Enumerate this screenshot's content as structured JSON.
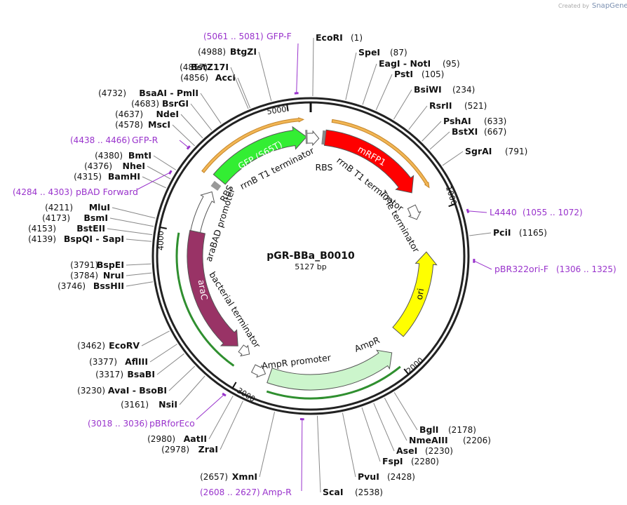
{
  "watermark": {
    "prefix": "Created by",
    "brand": "SnapGene"
  },
  "plasmid": {
    "name": "pGR-BBa_B0010",
    "length": "5127 bp"
  },
  "ruler": [
    "1000",
    "2000",
    "3000",
    "4000",
    "5000"
  ],
  "enzymes": [
    {
      "name": "EcoRI",
      "position": "(1)"
    },
    {
      "name": "SpeI",
      "position": "(87)"
    },
    {
      "name": "EagI - NotI",
      "position": "(95)"
    },
    {
      "name": "PstI",
      "position": "(105)"
    },
    {
      "name": "BsiWI",
      "position": "(234)"
    },
    {
      "name": "RsrII",
      "position": "(521)"
    },
    {
      "name": "PshAI",
      "position": "(633)"
    },
    {
      "name": "BstXI",
      "position": "(667)"
    },
    {
      "name": "SgrAI",
      "position": "(791)"
    },
    {
      "name": "PciI",
      "position": "(1165)"
    },
    {
      "name": "BglI",
      "position": "(2178)"
    },
    {
      "name": "NmeAIII",
      "position": "(2206)"
    },
    {
      "name": "AseI",
      "position": "(2230)"
    },
    {
      "name": "FspI",
      "position": "(2280)"
    },
    {
      "name": "PvuI",
      "position": "(2428)"
    },
    {
      "name": "ScaI",
      "position": "(2538)"
    },
    {
      "name": "XmnI",
      "position": "(2657)"
    },
    {
      "name": "ZraI",
      "position": "(2978)"
    },
    {
      "name": "AatII",
      "position": "(2980)"
    },
    {
      "name": "NsiI",
      "position": "(3161)"
    },
    {
      "name": "AvaI - BsoBI",
      "position": "(3230)"
    },
    {
      "name": "BsaBI",
      "position": "(3317)"
    },
    {
      "name": "AflIII",
      "position": "(3377)"
    },
    {
      "name": "EcoRV",
      "position": "(3462)"
    },
    {
      "name": "BssHII",
      "position": "(3746)"
    },
    {
      "name": "NruI",
      "position": "(3784)"
    },
    {
      "name": "BspEI",
      "position": "(3791)"
    },
    {
      "name": "BspQI - SapI",
      "position": "(4139)"
    },
    {
      "name": "BstEII",
      "position": "(4153)"
    },
    {
      "name": "BsmI",
      "position": "(4173)"
    },
    {
      "name": "MluI",
      "position": "(4211)"
    },
    {
      "name": "BamHI",
      "position": "(4315)"
    },
    {
      "name": "NheI",
      "position": "(4376)"
    },
    {
      "name": "BmtI",
      "position": "(4380)"
    },
    {
      "name": "MscI",
      "position": "(4578)"
    },
    {
      "name": "NdeI",
      "position": "(4637)"
    },
    {
      "name": "BsrGI",
      "position": "(4683)"
    },
    {
      "name": "BsaAI - PmlI",
      "position": "(4732)"
    },
    {
      "name": "AccI",
      "position": "(4856)"
    },
    {
      "name": "BstZ17I",
      "position": "(4857)"
    },
    {
      "name": "BtgZI",
      "position": "(4988)"
    }
  ],
  "primers": [
    {
      "name": "GFP-F",
      "range": "(5061 .. 5081)"
    },
    {
      "name": "GFP-R",
      "range": "(4438 .. 4466)"
    },
    {
      "name": "pBAD Forward",
      "range": "(4284 .. 4303)"
    },
    {
      "name": "L4440",
      "range": "(1055 .. 1072)"
    },
    {
      "name": "pBR322ori-F",
      "range": "(1306 .. 1325)"
    },
    {
      "name": "pBRforEco",
      "range": "(3018 .. 3036)"
    },
    {
      "name": "Amp-R",
      "range": "(2608 .. 2627)"
    }
  ],
  "features": [
    "GFP (S65T)",
    "mRFP1",
    "araC",
    "ori",
    "AmpR",
    "RBS",
    "RBS",
    "rrnB T1 terminator",
    "rrnB T1 terminator",
    "T7Te terminator",
    "araBAD promoter",
    "bacterial terminator",
    "AmpR promoter"
  ]
}
